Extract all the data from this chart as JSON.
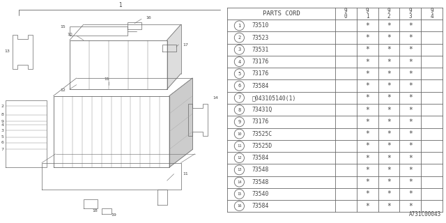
{
  "diagram_label": "A731C00043",
  "bg_color": "#ffffff",
  "rows": [
    {
      "num": "1",
      "part": "73510",
      "cols": [
        "",
        "*",
        "*",
        "*",
        ""
      ]
    },
    {
      "num": "2",
      "part": "73523",
      "cols": [
        "",
        "*",
        "*",
        "*",
        ""
      ]
    },
    {
      "num": "3",
      "part": "73531",
      "cols": [
        "",
        "*",
        "*",
        "*",
        ""
      ]
    },
    {
      "num": "4",
      "part": "73176",
      "cols": [
        "",
        "*",
        "*",
        "*",
        ""
      ]
    },
    {
      "num": "5",
      "part": "73176",
      "cols": [
        "",
        "*",
        "*",
        "*",
        ""
      ]
    },
    {
      "num": "6",
      "part": "73584",
      "cols": [
        "",
        "*",
        "*",
        "*",
        ""
      ]
    },
    {
      "num": "7",
      "part": "Ⓞ043105140(1)",
      "cols": [
        "",
        "*",
        "*",
        "*",
        ""
      ]
    },
    {
      "num": "8",
      "part": "73431Q",
      "cols": [
        "",
        "*",
        "*",
        "*",
        ""
      ]
    },
    {
      "num": "9",
      "part": "73176",
      "cols": [
        "",
        "*",
        "*",
        "*",
        ""
      ]
    },
    {
      "num": "10",
      "part": "73525C",
      "cols": [
        "",
        "*",
        "*",
        "*",
        ""
      ]
    },
    {
      "num": "11",
      "part": "73525D",
      "cols": [
        "",
        "*",
        "*",
        "*",
        ""
      ]
    },
    {
      "num": "12",
      "part": "73584",
      "cols": [
        "",
        "*",
        "*",
        "*",
        ""
      ]
    },
    {
      "num": "13",
      "part": "73548",
      "cols": [
        "",
        "*",
        "*",
        "*",
        ""
      ]
    },
    {
      "num": "14",
      "part": "73548",
      "cols": [
        "",
        "*",
        "*",
        "*",
        ""
      ]
    },
    {
      "num": "15",
      "part": "73540",
      "cols": [
        "",
        "*",
        "*",
        "*",
        ""
      ]
    },
    {
      "num": "16",
      "part": "73584",
      "cols": [
        "",
        "*",
        "*",
        "*",
        ""
      ]
    }
  ],
  "line_color": "#666666",
  "text_color": "#444444",
  "year_labels": [
    "9\n0",
    "9\n1",
    "9\n2",
    "9\n3",
    "9\n4"
  ],
  "col_ws_ratio": [
    0.5,
    0.1,
    0.1,
    0.1,
    0.1,
    0.1
  ]
}
